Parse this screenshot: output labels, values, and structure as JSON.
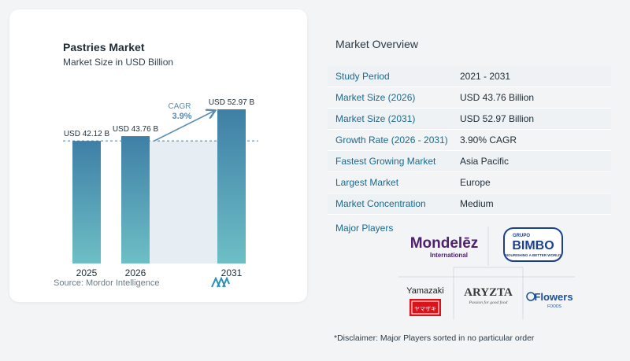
{
  "chart_data": {
    "type": "bar",
    "title": "Pastries Market",
    "subtitle": "Market Size in USD Billion",
    "categories": [
      "2025",
      "2026",
      "2031"
    ],
    "values": [
      42.12,
      43.76,
      52.97
    ],
    "value_labels": [
      "USD 42.12 B",
      "USD 43.76 B",
      "USD 52.97 B"
    ],
    "cagr_label": "CAGR",
    "cagr_value": "3.9%",
    "source": "Source:  Mordor Intelligence",
    "colors": {
      "bar_top": "#3f7fa6",
      "bar_bottom": "#6dbfc6",
      "highlight": "#e6edf3",
      "arrow": "#5b8ab0",
      "cagr_text": "#5b8ab0",
      "dashed": "#3f7fa6"
    }
  },
  "overview": {
    "title": "Market Overview",
    "rows": [
      {
        "label": "Study Period",
        "value": "2021 - 2031"
      },
      {
        "label": "Market Size (2026)",
        "value": "USD 43.76 Billion"
      },
      {
        "label": "Market Size (2031)",
        "value": "USD 52.97 Billion"
      },
      {
        "label": "Growth Rate (2026 - 2031)",
        "value": "3.90% CAGR"
      },
      {
        "label": "Fastest Growing Market",
        "value": "Asia Pacific"
      },
      {
        "label": "Largest Market",
        "value": "Europe"
      },
      {
        "label": "Market Concentration",
        "value": "Medium"
      }
    ]
  },
  "players": {
    "label": "Major Players",
    "logos": {
      "mondelez": {
        "name": "Mondelēz",
        "sub": "International"
      },
      "bimbo": {
        "top": "GRUPO",
        "name": "BIMBO",
        "sub": "NOURISHING A BETTER WORLD"
      },
      "yamazaki": {
        "name": "Yamazaki",
        "jp": "ヤマザキ"
      },
      "aryzta": {
        "name": "ARYZTA",
        "sub": "Passion for good food"
      },
      "flowers": {
        "name": "Flowers",
        "sub": "FOODS"
      }
    }
  },
  "disclaimer": "*Disclaimer: Major Players sorted in no particular order"
}
